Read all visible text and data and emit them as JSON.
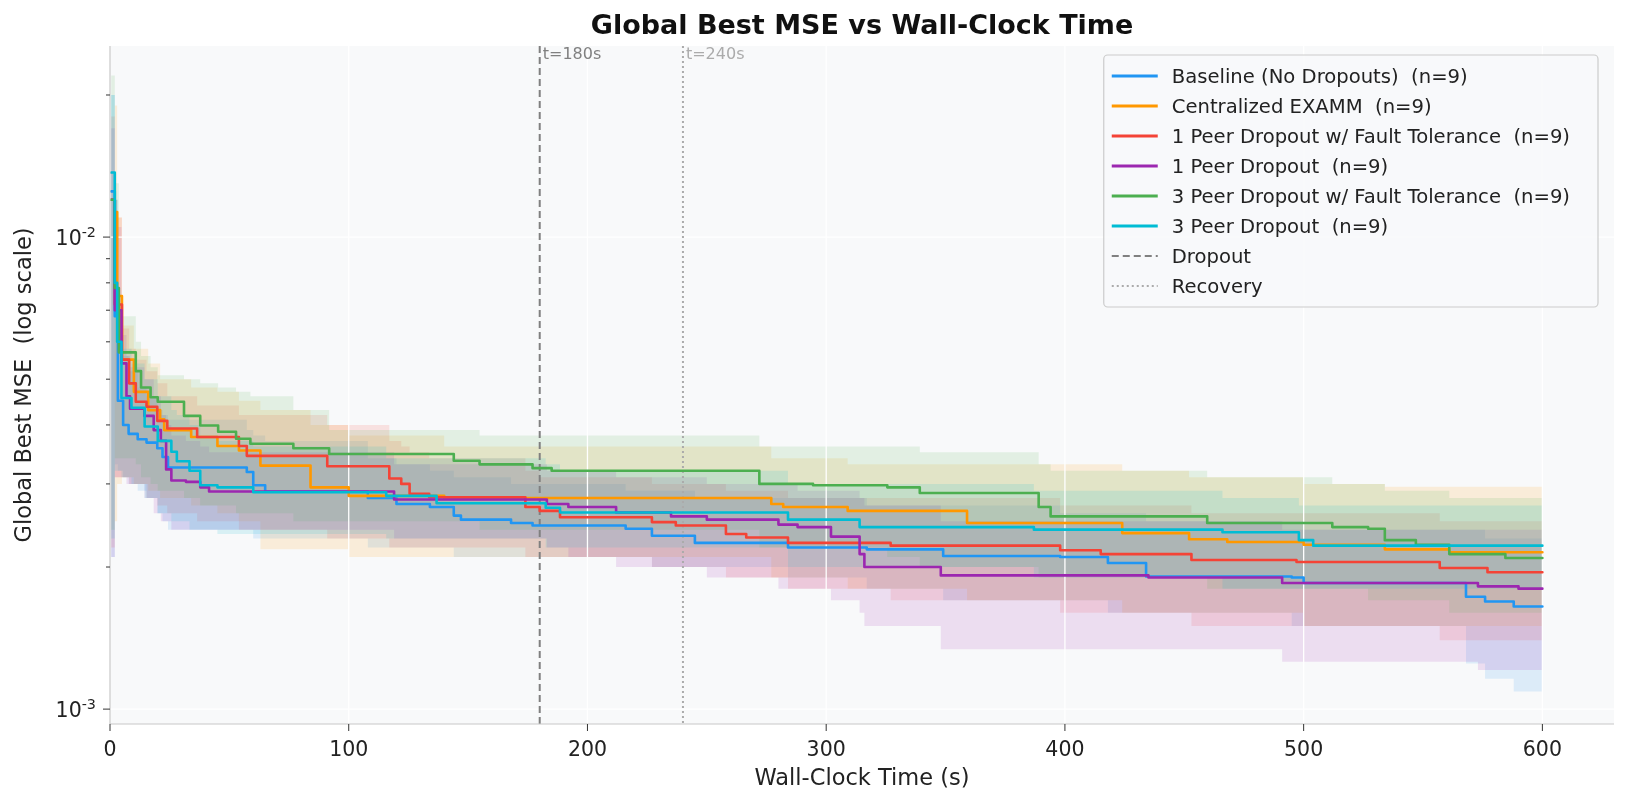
{
  "chart_data": {
    "type": "step",
    "title": "Global Best MSE vs Wall-Clock Time",
    "xlabel": "Wall-Clock Time (s)",
    "ylabel": "Global Best MSE  (log scale)",
    "xlim": [
      0,
      630
    ],
    "xticks": [
      0,
      100,
      200,
      300,
      400,
      500,
      600
    ],
    "ylim": [
      0.00093,
      0.0254
    ],
    "yticks": [
      {
        "value": 0.001,
        "label": "10$^{-3}$"
      },
      {
        "value": 0.002,
        "label": null
      },
      {
        "value": 0.003,
        "label": null
      },
      {
        "value": 0.004,
        "label": null
      },
      {
        "value": 0.005,
        "label": null
      },
      {
        "value": 0.006,
        "label": null
      },
      {
        "value": 0.007,
        "label": null
      },
      {
        "value": 0.008,
        "label": null
      },
      {
        "value": 0.009,
        "label": null
      },
      {
        "value": 0.01,
        "label": "10$^{-2}$"
      },
      {
        "value": 0.02,
        "label": null
      }
    ],
    "log": true,
    "grid": true,
    "legend": "top right",
    "series": [
      {
        "name": "Baseline (No Dropouts)  (n=9)",
        "color": "#2196f3",
        "x": [
          0.5,
          2,
          3.3,
          5.5,
          7.8,
          11.6,
          15.3,
          19.8,
          22,
          24.3,
          57.3,
          60,
          65,
          108,
          120,
          134,
          144,
          147,
          168,
          177,
          216,
          227,
          245,
          284,
          317,
          349,
          398,
          418,
          434,
          495,
          500,
          568,
          576,
          588,
          600
        ],
        "values": [
          0.0125,
          0.0068,
          0.0045,
          0.004,
          0.00383,
          0.00373,
          0.00367,
          0.00357,
          0.00342,
          0.00325,
          0.00318,
          0.00298,
          0.00289,
          0.0028,
          0.00272,
          0.00268,
          0.00257,
          0.00252,
          0.00248,
          0.00245,
          0.00241,
          0.00233,
          0.00225,
          0.0022,
          0.00218,
          0.00211,
          0.0021,
          0.00204,
          0.00191,
          0.0019,
          0.00185,
          0.00173,
          0.00169,
          0.00165,
          0.00165
        ],
        "lower": [
          0.0021,
          0.0033,
          0.0032,
          0.0031,
          0.003,
          0.0029,
          0.0028,
          0.0026,
          0.0025,
          0.0024,
          0.0024,
          0.0023,
          0.0023,
          0.0022,
          0.0022,
          0.0022,
          0.0021,
          0.0021,
          0.0021,
          0.0021,
          0.0021,
          0.002,
          0.002,
          0.0019,
          0.0018,
          0.0017,
          0.0017,
          0.0016,
          0.0016,
          0.0015,
          0.0015,
          0.00125,
          0.00116,
          0.00109,
          0.00109
        ],
        "upper": [
          0.02,
          0.012,
          0.0072,
          0.0056,
          0.0052,
          0.0048,
          0.0046,
          0.0043,
          0.0042,
          0.0041,
          0.0039,
          0.0038,
          0.0037,
          0.0034,
          0.0033,
          0.0032,
          0.0031,
          0.0031,
          0.003,
          0.003,
          0.0029,
          0.0029,
          0.0028,
          0.0028,
          0.0027,
          0.0027,
          0.0026,
          0.0026,
          0.0025,
          0.0025,
          0.0024,
          0.0024,
          0.0023,
          0.0023,
          0.0023
        ]
      },
      {
        "name": "Centralized EXAMM  (n=9)",
        "color": "#ff9800",
        "x": [
          2,
          3,
          5,
          10,
          16,
          21,
          22.7,
          34,
          45,
          54,
          63,
          84,
          100,
          140,
          277,
          282,
          309,
          359,
          424,
          452,
          468,
          500,
          534,
          561,
          600
        ],
        "values": [
          0.0113,
          0.0075,
          0.0055,
          0.0047,
          0.0043,
          0.00411,
          0.0039,
          0.00377,
          0.00361,
          0.00353,
          0.00328,
          0.00295,
          0.00283,
          0.0028,
          0.00272,
          0.00268,
          0.00263,
          0.00248,
          0.00236,
          0.00229,
          0.00226,
          0.00223,
          0.00218,
          0.00215,
          0.00215
        ],
        "lower": [
          0.0025,
          0.003,
          0.0031,
          0.003,
          0.0029,
          0.0028,
          0.0028,
          0.0027,
          0.0026,
          0.0025,
          0.00218,
          0.00218,
          0.0021,
          0.0021,
          0.0019,
          0.0019,
          0.0018,
          0.0017,
          0.0016,
          0.0016,
          0.0016,
          0.0015,
          0.0015,
          0.0015,
          0.0015
        ],
        "upper": [
          0.019,
          0.011,
          0.0065,
          0.0058,
          0.0054,
          0.005,
          0.005,
          0.0048,
          0.0047,
          0.0045,
          0.0043,
          0.004,
          0.0038,
          0.0036,
          0.0034,
          0.0034,
          0.0033,
          0.0033,
          0.0032,
          0.0031,
          0.0031,
          0.003,
          0.00296,
          0.00296,
          0.00296
        ]
      },
      {
        "name": "1 Peer Dropout w/ Fault Tolerance  (n=9)",
        "color": "#f44336",
        "x": [
          0.5,
          2,
          5,
          8,
          10.8,
          15.3,
          19.8,
          24,
          36.5,
          54,
          57.3,
          91,
          117,
          122,
          125.5,
          133.7,
          174,
          180,
          188.5,
          227,
          237,
          258,
          266.5,
          284,
          327,
          398,
          415,
          453,
          497,
          557,
          577,
          600
        ],
        "values": [
          0.012,
          0.0072,
          0.0055,
          0.0049,
          0.00448,
          0.00437,
          0.00408,
          0.00393,
          0.00377,
          0.00361,
          0.00344,
          0.00327,
          0.00308,
          0.003,
          0.00286,
          0.00281,
          0.00268,
          0.00263,
          0.00255,
          0.00249,
          0.00245,
          0.00235,
          0.00231,
          0.00225,
          0.00222,
          0.00217,
          0.00213,
          0.00207,
          0.00205,
          0.00199,
          0.00195,
          0.00195
        ],
        "lower": [
          0.0022,
          0.0031,
          0.0031,
          0.003,
          0.003,
          0.0028,
          0.0027,
          0.0026,
          0.0025,
          0.0024,
          0.0024,
          0.0023,
          0.0022,
          0.0022,
          0.0022,
          0.0022,
          0.0021,
          0.0021,
          0.0021,
          0.002,
          0.002,
          0.0019,
          0.0019,
          0.0018,
          0.0017,
          0.0016,
          0.0016,
          0.0015,
          0.0015,
          0.0014,
          0.0014,
          0.0014
        ],
        "upper": [
          0.018,
          0.011,
          0.0064,
          0.0058,
          0.0055,
          0.0052,
          0.0049,
          0.0046,
          0.0044,
          0.0042,
          0.0042,
          0.004,
          0.0037,
          0.0036,
          0.0035,
          0.0034,
          0.0032,
          0.0031,
          0.0031,
          0.003,
          0.003,
          0.0029,
          0.0029,
          0.0028,
          0.0028,
          0.0027,
          0.0027,
          0.0026,
          0.0026,
          0.0025,
          0.0025,
          0.0025
        ]
      },
      {
        "name": "1 Peer Dropout  (n=9)",
        "color": "#9c27b0",
        "x": [
          0.5,
          2,
          4.8,
          6.9,
          8.4,
          14.4,
          18.3,
          21.3,
          23.5,
          25.7,
          31.8,
          37.8,
          41.5,
          119,
          183,
          192,
          212,
          235,
          250,
          280,
          288,
          302,
          314,
          316,
          348,
          435,
          491,
          573,
          590,
          600
        ],
        "values": [
          0.012,
          0.007,
          0.0054,
          0.0046,
          0.00433,
          0.00418,
          0.0039,
          0.0037,
          0.00322,
          0.00305,
          0.00303,
          0.00295,
          0.00289,
          0.00278,
          0.00272,
          0.00268,
          0.00261,
          0.00256,
          0.00252,
          0.00246,
          0.00243,
          0.00232,
          0.00213,
          0.002,
          0.00192,
          0.0019,
          0.00185,
          0.00182,
          0.0018,
          0.0018
        ],
        "lower": [
          0.0021,
          0.0031,
          0.0031,
          0.003,
          0.003,
          0.0028,
          0.0026,
          0.0025,
          0.0025,
          0.0024,
          0.0024,
          0.0024,
          0.0024,
          0.0023,
          0.0022,
          0.0021,
          0.002,
          0.002,
          0.0019,
          0.0018,
          0.0018,
          0.0017,
          0.0016,
          0.0015,
          0.00134,
          0.00134,
          0.00126,
          0.00121,
          0.00121,
          0.00121
        ],
        "upper": [
          0.017,
          0.0105,
          0.0062,
          0.0056,
          0.0053,
          0.005,
          0.0046,
          0.0042,
          0.004,
          0.0038,
          0.0037,
          0.0036,
          0.0035,
          0.0033,
          0.0032,
          0.0032,
          0.0031,
          0.0031,
          0.003,
          0.003,
          0.0029,
          0.0029,
          0.0028,
          0.0027,
          0.0025,
          0.0025,
          0.0024,
          0.0024,
          0.0024,
          0.0024
        ]
      },
      {
        "name": "3 Peer Dropout w/ Fault Tolerance  (n=9)",
        "color": "#4caf50",
        "x": [
          0.5,
          2,
          3.7,
          10.8,
          13,
          17,
          20,
          31,
          37.8,
          45.3,
          52.8,
          58.8,
          76.8,
          91.8,
          144,
          154.8,
          177,
          185,
          272,
          294.5,
          325.6,
          339.2,
          389,
          394,
          459.6,
          512,
          527,
          534,
          547,
          561,
          584.5,
          600
        ],
        "values": [
          0.012,
          0.0078,
          0.0057,
          0.0052,
          0.0048,
          0.00458,
          0.00448,
          0.00418,
          0.00399,
          0.00387,
          0.00374,
          0.00365,
          0.00357,
          0.00347,
          0.00336,
          0.0033,
          0.00324,
          0.0032,
          0.003,
          0.00298,
          0.00295,
          0.00287,
          0.00268,
          0.00256,
          0.00248,
          0.00243,
          0.00241,
          0.00228,
          0.00223,
          0.00213,
          0.00209,
          0.00209
        ],
        "lower": [
          0.0024,
          0.0034,
          0.0034,
          0.0033,
          0.0031,
          0.003,
          0.0029,
          0.0028,
          0.0027,
          0.0027,
          0.0026,
          0.0026,
          0.0025,
          0.0025,
          0.0025,
          0.0024,
          0.0024,
          0.0024,
          0.0022,
          0.0022,
          0.0021,
          0.002,
          0.0019,
          0.0019,
          0.0018,
          0.0018,
          0.0017,
          0.0017,
          0.0017,
          0.0016,
          0.0016,
          0.0016
        ],
        "upper": [
          0.022,
          0.013,
          0.0068,
          0.006,
          0.0056,
          0.0053,
          0.0051,
          0.005,
          0.0049,
          0.0048,
          0.0047,
          0.0046,
          0.0043,
          0.0039,
          0.0039,
          0.0038,
          0.0038,
          0.0038,
          0.0036,
          0.0036,
          0.0036,
          0.0035,
          0.0033,
          0.0032,
          0.0031,
          0.003,
          0.003,
          0.0029,
          0.0029,
          0.0028,
          0.0028,
          0.0028
        ]
      },
      {
        "name": "3 Peer Dropout  (n=9)",
        "color": "#00bcd4",
        "x": [
          0.5,
          2,
          3,
          4.8,
          9,
          14.5,
          20,
          25.7,
          28,
          33.3,
          37.8,
          45,
          60,
          115.7,
          136.8,
          182.5,
          188.5,
          284,
          314,
          387,
          466,
          498,
          504,
          600
        ],
        "values": [
          0.0137,
          0.008,
          0.006,
          0.00456,
          0.00435,
          0.00397,
          0.0037,
          0.00351,
          0.00335,
          0.0032,
          0.00298,
          0.00295,
          0.00288,
          0.00283,
          0.00273,
          0.00267,
          0.00261,
          0.00252,
          0.00243,
          0.0024,
          0.00237,
          0.00228,
          0.00222,
          0.00222
        ],
        "lower": [
          0.0023,
          0.0032,
          0.0032,
          0.0031,
          0.003,
          0.0028,
          0.0026,
          0.0025,
          0.0025,
          0.0024,
          0.0024,
          0.00235,
          0.00235,
          0.0023,
          0.0023,
          0.0022,
          0.0022,
          0.002,
          0.002,
          0.0019,
          0.0018,
          0.0018,
          0.0018,
          0.0018
        ],
        "upper": [
          0.02,
          0.012,
          0.0072,
          0.0058,
          0.0054,
          0.005,
          0.0046,
          0.0043,
          0.0042,
          0.004,
          0.0038,
          0.0037,
          0.0036,
          0.0034,
          0.0034,
          0.0033,
          0.0032,
          0.003,
          0.003,
          0.0029,
          0.0028,
          0.0027,
          0.0027,
          0.0027
        ]
      }
    ],
    "ref_lines": [
      {
        "axis": "x",
        "value": 180,
        "label": "t=180s",
        "color": "#808080",
        "line_style": "dashed"
      },
      {
        "axis": "x",
        "value": 240,
        "label": "t=240s",
        "color": "#ababab",
        "line_style": "dotted"
      }
    ],
    "annotations": [
      "Dropout",
      "Recovery"
    ]
  }
}
